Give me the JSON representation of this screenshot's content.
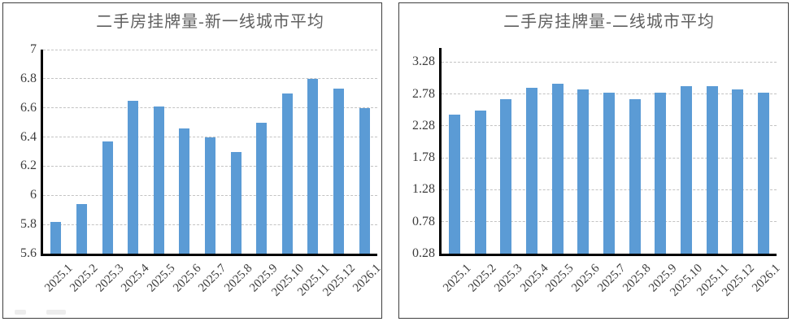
{
  "chart_data": [
    {
      "type": "bar",
      "title": "二手房挂牌量-新一线城市平均",
      "categories": [
        "2025.1",
        "2025.2",
        "2025.3",
        "2025.4",
        "2025.5",
        "2025.6",
        "2025.7",
        "2025.8",
        "2025.9",
        "2025.10",
        "2025.11",
        "2025.12",
        "2026.1"
      ],
      "values": [
        5.82,
        5.94,
        6.37,
        6.65,
        6.61,
        6.46,
        6.4,
        6.3,
        6.5,
        6.7,
        6.8,
        6.73,
        6.6
      ],
      "xlabel": "",
      "ylabel": "",
      "ylim": [
        5.6,
        7.0
      ],
      "ytick_values": [
        5.6,
        5.8,
        6.0,
        6.2,
        6.4,
        6.6,
        6.8,
        7.0
      ],
      "ytick_labels": [
        "5.6",
        "5.8",
        "6",
        "6.2",
        "6.4",
        "6.6",
        "6.8",
        "7"
      ],
      "x_label_rotation": 45,
      "grid": "horizontal-dashed",
      "legend": "none",
      "bar_color": "#5B9BD5"
    },
    {
      "type": "bar",
      "title": "二手房挂牌量-二线城市平均",
      "categories": [
        "2025.1",
        "2025.2",
        "2025.3",
        "2025.4",
        "2025.5",
        "2025.6",
        "2025.7",
        "2025.8",
        "2025.9",
        "2025.10",
        "2025.11",
        "2025.12",
        "2026.1"
      ],
      "values": [
        2.46,
        2.52,
        2.7,
        2.88,
        2.94,
        2.85,
        2.8,
        2.7,
        2.8,
        2.9,
        2.9,
        2.85,
        2.8
      ],
      "xlabel": "",
      "ylabel": "",
      "ylim": [
        0.28,
        3.5
      ],
      "ytick_values": [
        0.28,
        0.78,
        1.28,
        1.78,
        2.28,
        2.78,
        3.28
      ],
      "ytick_labels": [
        "0.28",
        "0.78",
        "1.28",
        "1.78",
        "2.28",
        "2.78",
        "3.28"
      ],
      "x_label_rotation": 45,
      "grid": "horizontal-dashed",
      "legend": "none",
      "bar_color": "#5B9BD5"
    }
  ],
  "colors": {
    "bar": "#5B9BD5",
    "gridline": "#c3c3c3",
    "axis": "#000000",
    "title_text": "#5f5f5f",
    "tick_text": "#3d3d3d",
    "panel_border": "#3f3f3f",
    "background": "#ffffff"
  }
}
